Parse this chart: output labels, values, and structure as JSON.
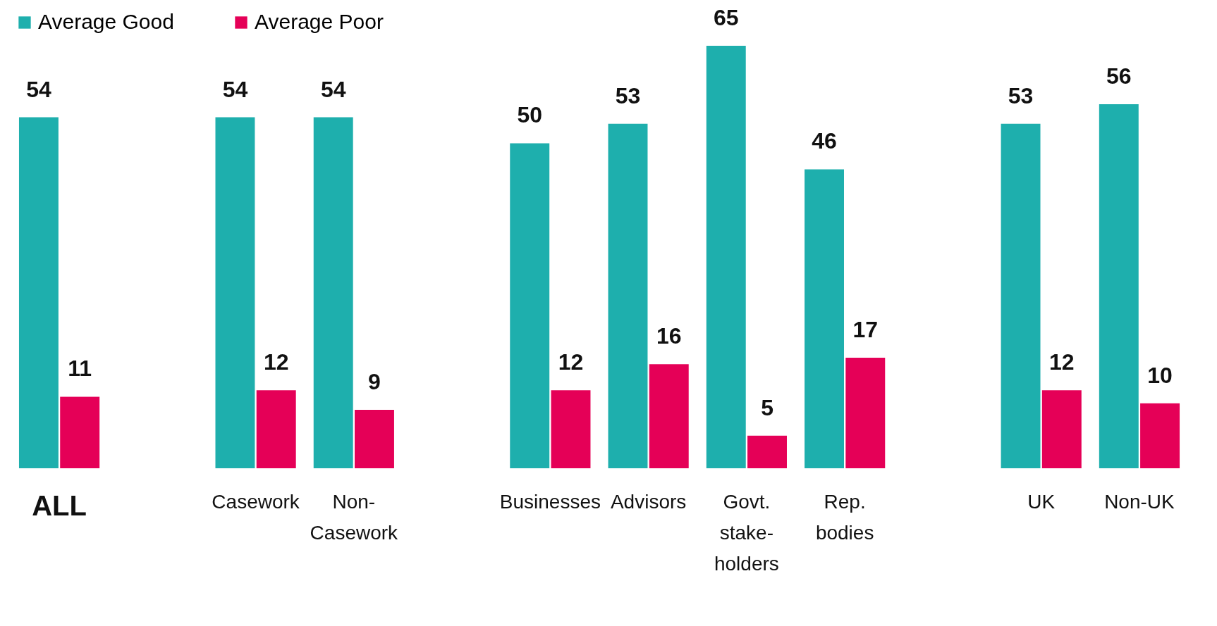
{
  "chart_data": {
    "type": "bar",
    "categories": [
      "ALL",
      null,
      "Casework",
      "Non-\nCasework",
      null,
      "Businesses",
      "Advisors",
      "Govt.\nstake-\nholders",
      "Rep.\nbodies",
      null,
      "UK",
      "Non-UK"
    ],
    "series": [
      {
        "name": "Average Good",
        "color": "#1eafad",
        "values": [
          54,
          null,
          54,
          54,
          null,
          50,
          53,
          65,
          46,
          null,
          53,
          56
        ]
      },
      {
        "name": "Average Poor",
        "color": "#e50057",
        "values": [
          11,
          null,
          12,
          9,
          null,
          12,
          16,
          5,
          17,
          null,
          12,
          10
        ]
      }
    ],
    "data_labels": true,
    "legend": "top",
    "grid": false
  }
}
